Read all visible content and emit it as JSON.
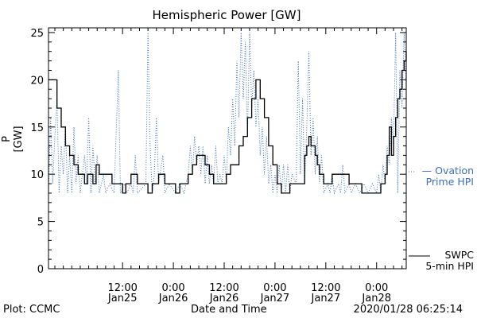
{
  "chart_data": {
    "type": "line",
    "title": "Hemispheric Power [GW]",
    "ylabel": "P [GW]",
    "xlabel": "Date and Time",
    "ylim": [
      0,
      25.5
    ],
    "xlim": [
      "2020-01-24T18:30",
      "2020-01-28T07:00"
    ],
    "yticks": [
      0,
      5,
      10,
      15,
      20,
      25
    ],
    "xticks": [
      {
        "time": "2020-01-25T12:00",
        "line1": "12:00",
        "line2": "Jan25"
      },
      {
        "time": "2020-01-26T00:00",
        "line1": "0:00",
        "line2": "Jan26"
      },
      {
        "time": "2020-01-26T12:00",
        "line1": "12:00",
        "line2": "Jan26"
      },
      {
        "time": "2020-01-27T00:00",
        "line1": "0:00",
        "line2": "Jan27"
      },
      {
        "time": "2020-01-27T12:00",
        "line1": "12:00",
        "line2": "Jan27"
      },
      {
        "time": "2020-01-28T00:00",
        "line1": "0:00",
        "line2": "Jan28"
      }
    ],
    "grid": false,
    "series": [
      {
        "name": "SWPC 5-min HPI",
        "color": "#000000",
        "style": "solid",
        "points": [
          [
            "2020-01-24T18:30",
            20
          ],
          [
            "2020-01-24T19:15",
            20
          ],
          [
            "2020-01-24T20:30",
            17
          ],
          [
            "2020-01-24T21:30",
            15
          ],
          [
            "2020-01-24T22:30",
            13
          ],
          [
            "2020-01-24T23:30",
            12
          ],
          [
            "2020-01-25T00:30",
            11
          ],
          [
            "2020-01-25T01:30",
            10
          ],
          [
            "2020-01-25T02:30",
            10
          ],
          [
            "2020-01-25T03:00",
            9
          ],
          [
            "2020-01-25T03:45",
            10
          ],
          [
            "2020-01-25T04:30",
            10
          ],
          [
            "2020-01-25T05:00",
            9
          ],
          [
            "2020-01-25T05:45",
            11
          ],
          [
            "2020-01-25T06:30",
            10
          ],
          [
            "2020-01-25T07:30",
            10
          ],
          [
            "2020-01-25T09:00",
            10
          ],
          [
            "2020-01-25T09:30",
            9
          ],
          [
            "2020-01-25T10:30",
            9
          ],
          [
            "2020-01-25T11:30",
            9
          ],
          [
            "2020-01-25T12:00",
            8
          ],
          [
            "2020-01-25T12:45",
            9
          ],
          [
            "2020-01-25T14:00",
            10
          ],
          [
            "2020-01-25T15:30",
            9
          ],
          [
            "2020-01-25T17:00",
            9
          ],
          [
            "2020-01-25T18:00",
            8
          ],
          [
            "2020-01-25T19:00",
            9
          ],
          [
            "2020-01-25T20:30",
            10
          ],
          [
            "2020-01-25T22:00",
            9
          ],
          [
            "2020-01-25T23:30",
            9
          ],
          [
            "2020-01-26T00:30",
            8
          ],
          [
            "2020-01-26T01:30",
            9
          ],
          [
            "2020-01-26T02:30",
            9
          ],
          [
            "2020-01-26T03:30",
            10
          ],
          [
            "2020-01-26T04:30",
            11
          ],
          [
            "2020-01-26T05:30",
            12
          ],
          [
            "2020-01-26T06:30",
            12
          ],
          [
            "2020-01-26T07:30",
            11
          ],
          [
            "2020-01-26T08:30",
            10
          ],
          [
            "2020-01-26T09:30",
            9
          ],
          [
            "2020-01-26T10:30",
            9
          ],
          [
            "2020-01-26T11:30",
            9
          ],
          [
            "2020-01-26T12:30",
            10
          ],
          [
            "2020-01-26T13:30",
            11
          ],
          [
            "2020-01-26T14:30",
            11
          ],
          [
            "2020-01-26T15:30",
            13
          ],
          [
            "2020-01-26T16:30",
            14
          ],
          [
            "2020-01-26T17:30",
            16
          ],
          [
            "2020-01-26T18:30",
            18
          ],
          [
            "2020-01-26T19:30",
            20
          ],
          [
            "2020-01-26T20:30",
            18
          ],
          [
            "2020-01-26T21:30",
            16
          ],
          [
            "2020-01-26T22:30",
            13
          ],
          [
            "2020-01-26T23:30",
            11
          ],
          [
            "2020-01-27T00:30",
            9
          ],
          [
            "2020-01-27T01:30",
            8
          ],
          [
            "2020-01-27T02:30",
            8
          ],
          [
            "2020-01-27T03:30",
            9
          ],
          [
            "2020-01-27T04:30",
            9
          ],
          [
            "2020-01-27T05:30",
            9
          ],
          [
            "2020-01-27T06:30",
            9
          ],
          [
            "2020-01-27T07:00",
            12
          ],
          [
            "2020-01-27T07:30",
            13
          ],
          [
            "2020-01-27T08:00",
            14
          ],
          [
            "2020-01-27T08:30",
            13
          ],
          [
            "2020-01-27T09:00",
            13
          ],
          [
            "2020-01-27T09:30",
            12
          ],
          [
            "2020-01-27T10:00",
            11
          ],
          [
            "2020-01-27T10:30",
            10
          ],
          [
            "2020-01-27T11:30",
            9
          ],
          [
            "2020-01-27T12:30",
            9
          ],
          [
            "2020-01-27T13:30",
            10
          ],
          [
            "2020-01-27T14:30",
            10
          ],
          [
            "2020-01-27T15:30",
            10
          ],
          [
            "2020-01-27T16:30",
            10
          ],
          [
            "2020-01-27T17:30",
            9
          ],
          [
            "2020-01-27T18:30",
            9
          ],
          [
            "2020-01-27T19:30",
            9
          ],
          [
            "2020-01-27T20:30",
            8
          ],
          [
            "2020-01-27T21:30",
            8
          ],
          [
            "2020-01-27T22:30",
            8
          ],
          [
            "2020-01-27T23:30",
            8
          ],
          [
            "2020-01-28T00:30",
            8
          ],
          [
            "2020-01-28T01:00",
            9
          ],
          [
            "2020-01-28T01:30",
            9
          ],
          [
            "2020-01-28T02:00",
            10
          ],
          [
            "2020-01-28T02:30",
            12
          ],
          [
            "2020-01-28T03:00",
            15
          ],
          [
            "2020-01-28T03:30",
            12
          ],
          [
            "2020-01-28T04:00",
            14
          ],
          [
            "2020-01-28T04:30",
            16
          ],
          [
            "2020-01-28T05:00",
            18
          ],
          [
            "2020-01-28T05:30",
            19
          ],
          [
            "2020-01-28T06:00",
            21
          ],
          [
            "2020-01-28T06:30",
            22
          ],
          [
            "2020-01-28T07:00",
            23
          ]
        ]
      },
      {
        "name": "Ovation Prime HPI",
        "color": "#3d6fbd",
        "style": "dotted",
        "points": [
          [
            "2020-01-24T18:30",
            8
          ],
          [
            "2020-01-24T19:00",
            16
          ],
          [
            "2020-01-24T19:30",
            9
          ],
          [
            "2020-01-24T20:00",
            14
          ],
          [
            "2020-01-24T20:30",
            18
          ],
          [
            "2020-01-24T21:00",
            8
          ],
          [
            "2020-01-24T21:30",
            13
          ],
          [
            "2020-01-24T22:00",
            10
          ],
          [
            "2020-01-24T22:30",
            15
          ],
          [
            "2020-01-24T23:00",
            8
          ],
          [
            "2020-01-24T23:30",
            12
          ],
          [
            "2020-01-25T00:00",
            8
          ],
          [
            "2020-01-25T00:30",
            15
          ],
          [
            "2020-01-25T01:00",
            9
          ],
          [
            "2020-01-25T01:30",
            12
          ],
          [
            "2020-01-25T02:00",
            8
          ],
          [
            "2020-01-25T02:30",
            10
          ],
          [
            "2020-01-25T03:00",
            12
          ],
          [
            "2020-01-25T03:30",
            9
          ],
          [
            "2020-01-25T04:00",
            16
          ],
          [
            "2020-01-25T04:30",
            8
          ],
          [
            "2020-01-25T05:00",
            13
          ],
          [
            "2020-01-25T05:30",
            9
          ],
          [
            "2020-01-25T06:00",
            12
          ],
          [
            "2020-01-25T06:30",
            8
          ],
          [
            "2020-01-25T07:00",
            9
          ],
          [
            "2020-01-25T07:30",
            10
          ],
          [
            "2020-01-25T08:00",
            8
          ],
          [
            "2020-01-25T09:00",
            9
          ],
          [
            "2020-01-25T10:00",
            8
          ],
          [
            "2020-01-25T11:00",
            21
          ],
          [
            "2020-01-25T11:30",
            8
          ],
          [
            "2020-01-25T12:30",
            9
          ],
          [
            "2020-01-25T13:00",
            8
          ],
          [
            "2020-01-25T14:00",
            9
          ],
          [
            "2020-01-25T14:30",
            8
          ],
          [
            "2020-01-25T15:00",
            12
          ],
          [
            "2020-01-25T15:30",
            8
          ],
          [
            "2020-01-25T17:30",
            9
          ],
          [
            "2020-01-25T18:00",
            25
          ],
          [
            "2020-01-25T18:30",
            13
          ],
          [
            "2020-01-25T19:00",
            8
          ],
          [
            "2020-01-25T19:30",
            10
          ],
          [
            "2020-01-25T20:00",
            16
          ],
          [
            "2020-01-25T20:30",
            9
          ],
          [
            "2020-01-25T21:30",
            12
          ],
          [
            "2020-01-25T22:00",
            8
          ],
          [
            "2020-01-25T23:00",
            9
          ],
          [
            "2020-01-26T00:30",
            8
          ],
          [
            "2020-01-26T01:30",
            9
          ],
          [
            "2020-01-26T02:30",
            8
          ],
          [
            "2020-01-26T03:30",
            10
          ],
          [
            "2020-01-26T04:00",
            13
          ],
          [
            "2020-01-26T04:30",
            10
          ],
          [
            "2020-01-26T05:00",
            14
          ],
          [
            "2020-01-26T05:30",
            11
          ],
          [
            "2020-01-26T06:00",
            13
          ],
          [
            "2020-01-26T06:30",
            10
          ],
          [
            "2020-01-26T07:00",
            13
          ],
          [
            "2020-01-26T07:30",
            9
          ],
          [
            "2020-01-26T08:00",
            12
          ],
          [
            "2020-01-26T08:30",
            9
          ],
          [
            "2020-01-26T09:00",
            11
          ],
          [
            "2020-01-26T09:30",
            9
          ],
          [
            "2020-01-26T10:00",
            13
          ],
          [
            "2020-01-26T10:30",
            9
          ],
          [
            "2020-01-26T11:00",
            10
          ],
          [
            "2020-01-26T11:30",
            9
          ],
          [
            "2020-01-26T12:00",
            12
          ],
          [
            "2020-01-26T12:30",
            9
          ],
          [
            "2020-01-26T13:00",
            15
          ],
          [
            "2020-01-26T13:30",
            12
          ],
          [
            "2020-01-26T14:00",
            18
          ],
          [
            "2020-01-26T14:30",
            13
          ],
          [
            "2020-01-26T15:00",
            22
          ],
          [
            "2020-01-26T15:30",
            16
          ],
          [
            "2020-01-26T16:00",
            25
          ],
          [
            "2020-01-26T16:30",
            18
          ],
          [
            "2020-01-26T17:00",
            24
          ],
          [
            "2020-01-26T17:30",
            14
          ],
          [
            "2020-01-26T18:00",
            25
          ],
          [
            "2020-01-26T18:30",
            17
          ],
          [
            "2020-01-26T19:00",
            21
          ],
          [
            "2020-01-26T19:30",
            15
          ],
          [
            "2020-01-26T20:00",
            18
          ],
          [
            "2020-01-26T20:30",
            12
          ],
          [
            "2020-01-26T21:00",
            15
          ],
          [
            "2020-01-26T21:30",
            10
          ],
          [
            "2020-01-26T22:00",
            14
          ],
          [
            "2020-01-26T22:30",
            9
          ],
          [
            "2020-01-26T23:00",
            11
          ],
          [
            "2020-01-26T23:30",
            8
          ],
          [
            "2020-01-27T00:00",
            10
          ],
          [
            "2020-01-27T00:30",
            8
          ],
          [
            "2020-01-27T01:00",
            11
          ],
          [
            "2020-01-27T01:30",
            8
          ],
          [
            "2020-01-27T02:00",
            11
          ],
          [
            "2020-01-27T02:30",
            8
          ],
          [
            "2020-01-27T03:00",
            11
          ],
          [
            "2020-01-27T03:30",
            8
          ],
          [
            "2020-01-27T04:00",
            10
          ],
          [
            "2020-01-27T05:00",
            9
          ],
          [
            "2020-01-27T05:30",
            22
          ],
          [
            "2020-01-27T06:00",
            10
          ],
          [
            "2020-01-27T06:30",
            18
          ],
          [
            "2020-01-27T07:00",
            9
          ],
          [
            "2020-01-27T07:30",
            15
          ],
          [
            "2020-01-27T08:00",
            23
          ],
          [
            "2020-01-27T08:30",
            12
          ],
          [
            "2020-01-27T09:00",
            16
          ],
          [
            "2020-01-27T09:30",
            10
          ],
          [
            "2020-01-27T10:00",
            14
          ],
          [
            "2020-01-27T10:30",
            9
          ],
          [
            "2020-01-27T11:00",
            12
          ],
          [
            "2020-01-27T11:30",
            8
          ],
          [
            "2020-01-27T12:30",
            9
          ],
          [
            "2020-01-27T13:00",
            8
          ],
          [
            "2020-01-27T13:30",
            10
          ],
          [
            "2020-01-27T14:00",
            8
          ],
          [
            "2020-01-27T15:00",
            9
          ],
          [
            "2020-01-27T15:30",
            8
          ],
          [
            "2020-01-27T16:00",
            11
          ],
          [
            "2020-01-27T16:30",
            8
          ],
          [
            "2020-01-27T17:30",
            9
          ],
          [
            "2020-01-27T18:00",
            8
          ],
          [
            "2020-01-27T19:00",
            9
          ],
          [
            "2020-01-27T20:00",
            8
          ],
          [
            "2020-01-27T21:00",
            9
          ],
          [
            "2020-01-27T22:00",
            8
          ],
          [
            "2020-01-27T23:00",
            9
          ],
          [
            "2020-01-28T00:00",
            8
          ],
          [
            "2020-01-28T00:30",
            10
          ],
          [
            "2020-01-28T01:00",
            8
          ],
          [
            "2020-01-28T01:30",
            11
          ],
          [
            "2020-01-28T02:00",
            9
          ],
          [
            "2020-01-28T02:30",
            13
          ],
          [
            "2020-01-28T03:00",
            11
          ],
          [
            "2020-01-28T03:30",
            16
          ],
          [
            "2020-01-28T04:00",
            13
          ],
          [
            "2020-01-28T04:30",
            25
          ],
          [
            "2020-01-28T05:00",
            8
          ],
          [
            "2020-01-28T05:30",
            21
          ],
          [
            "2020-01-28T06:00",
            17
          ],
          [
            "2020-01-28T06:30",
            25
          ],
          [
            "2020-01-28T07:00",
            19
          ]
        ]
      }
    ],
    "legend": [
      {
        "series": "Ovation Prime HPI",
        "line1": "— Ovation",
        "line2": "Prime HPI",
        "placement": "right-middle"
      },
      {
        "series": "SWPC 5-min HPI",
        "line1": "SWPC",
        "line2": "5-min HPI",
        "placement": "right-bottom"
      }
    ]
  },
  "footer": {
    "plot_by": "Plot: CCMC",
    "timestamp": "2020/01/28 06:25:14"
  }
}
